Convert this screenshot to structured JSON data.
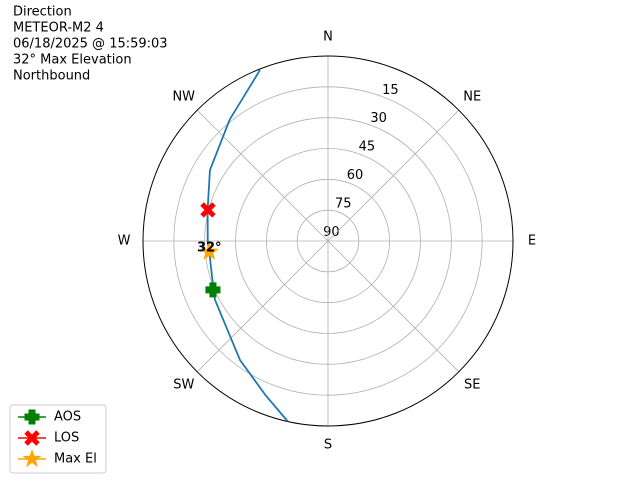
{
  "chart_data": {
    "type": "polar",
    "title_lines": [
      "Direction",
      "METEOR-M2 4",
      "06/18/2025 @ 15:59:03",
      "32° Max Elevation",
      "Northbound"
    ],
    "thetaticks": [
      {
        "value": 0,
        "label": "N"
      },
      {
        "value": 45,
        "label": "NE"
      },
      {
        "value": 90,
        "label": "E"
      },
      {
        "value": 135,
        "label": "SE"
      },
      {
        "value": 180,
        "label": "S"
      },
      {
        "value": 225,
        "label": "SW"
      },
      {
        "value": 270,
        "label": "W"
      },
      {
        "value": 315,
        "label": "NW"
      }
    ],
    "rlim": [
      90,
      0
    ],
    "rticks": [
      90,
      75,
      60,
      45,
      30,
      15
    ],
    "grid": true,
    "series": [
      {
        "color": "#1f77b4",
        "marker": "none",
        "theta": [
          338.3,
          321,
          301,
          284.5,
          270,
          264.8,
          247,
          242.4,
          216.5,
          202,
          192.5
        ],
        "values": [
          0.5,
          14,
          23,
          29.5,
          31.5,
          32,
          29.5,
          28,
          18,
          9,
          0
        ]
      },
      {
        "name": "AOS",
        "color": "#008000",
        "marker": "plus",
        "theta": [
          247
        ],
        "values": [
          29.2
        ]
      },
      {
        "name": "LOS",
        "color": "#ff0000",
        "marker": "x",
        "theta": [
          284.5
        ],
        "values": [
          29.7
        ]
      },
      {
        "name": "Max El",
        "color": "#ffa500",
        "marker": "star",
        "theta": [
          264.8
        ],
        "values": [
          32
        ]
      }
    ],
    "annotation": {
      "text": "32°",
      "theta": 264.8,
      "value": 32
    },
    "legend": "lower left"
  }
}
